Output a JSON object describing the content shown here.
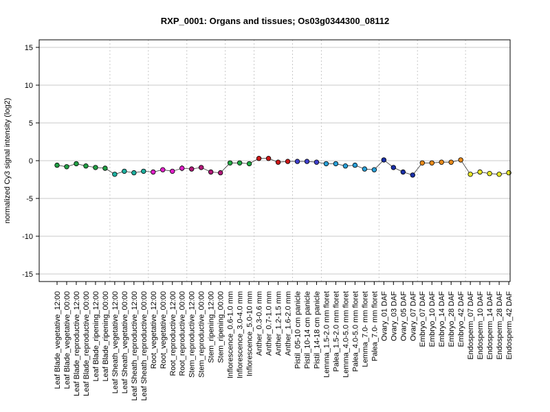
{
  "chart_data": {
    "type": "line",
    "title": "RXP_0001: Organs and tissues; Os03g0344300_08112",
    "ylabel": "normalized Cy3 signal intensity (log2)",
    "xlabel": "",
    "ylim": [
      -16,
      16
    ],
    "y_ticks": [
      -15,
      -10,
      -5,
      0,
      5,
      10,
      15
    ],
    "grid": {
      "horizontal": true,
      "vertical_group_separators": true
    },
    "categories": [
      "Leaf Blade_vegetative_12:00",
      "Leaf Blade_vegetative_00:00",
      "Leaf Blade_reproductive_12:00",
      "Leaf Blade_reproductive_00:00",
      "Leaf Blade_ripening_12:00",
      "Leaf Blade_ripening_00:00",
      "Leaf Sheath_vegetative_12:00",
      "Leaf Sheath_vegetative_00:00",
      "Leaf Sheath_reproductive_12:00",
      "Leaf Sheath_reproductive_00:00",
      "Root_vegetative_12:00",
      "Root_vegetative_00:00",
      "Root_reproductive_12:00",
      "Root_reproductive_00:00",
      "Stem_reproductive_12:00",
      "Stem_reproductive_00:00",
      "Stem_ripening_12:00",
      "Stem_ripening_00:00",
      "Inflorescence_0.6-1.0 mm",
      "Inflorescence_3.0-4.0 mm",
      "Inflorescence_5.0-10 mm",
      "Anther_0.3-0.6 mm",
      "Anther_0.7-1.0 mm",
      "Anther_1.2-1.5 mm",
      "Anther_1.6-2.0 mm",
      "Pistil_05-10 cm panicle",
      "Pistil_10-14 cm panicle",
      "Pistil_14-18 cm panicle",
      "Lemma_1.5-2.0 mm floret",
      "Palea_1.5-2.0 mm floret",
      "Lemma_4.0-5.0 mm floret",
      "Palea_4.0-5.0 mm floret",
      "Lemma_7.0- mm floret",
      "Palea_7.0- mm floret",
      "Ovary_01 DAF",
      "Ovary_03 DAF",
      "Ovary_05 DAF",
      "Ovary_07 DAF",
      "Embryo_07 DAF",
      "Embryo_10 DAF",
      "Embryo_14 DAF",
      "Embryo_28 DAF",
      "Embryo_42 DAF",
      "Endosperm_07 DAF",
      "Endosperm_10 DAF",
      "Endosperm_14 DAF",
      "Endosperm_28 DAF",
      "Endosperm_42 DAF"
    ],
    "values": [
      -0.6,
      -0.8,
      -0.4,
      -0.7,
      -0.9,
      -1.0,
      -1.8,
      -1.4,
      -1.6,
      -1.4,
      -1.5,
      -1.2,
      -1.4,
      -1.0,
      -1.1,
      -0.9,
      -1.5,
      -1.6,
      -0.3,
      -0.3,
      -0.4,
      0.3,
      0.3,
      -0.2,
      -0.1,
      -0.1,
      -0.1,
      -0.2,
      -0.4,
      -0.4,
      -0.7,
      -0.6,
      -1.1,
      -1.2,
      0.1,
      -0.9,
      -1.5,
      -1.9,
      -0.3,
      -0.3,
      -0.2,
      -0.2,
      0.1,
      -1.8,
      -1.5,
      -1.7,
      -1.8,
      -1.6
    ],
    "error": [
      0.1,
      0.1,
      0.1,
      0.1,
      0.1,
      0.1,
      0.15,
      0.1,
      0.2,
      0.1,
      0.1,
      0.1,
      0.25,
      0.4,
      0.3,
      0.2,
      0.1,
      0.1,
      0.1,
      0.1,
      0.1,
      0.1,
      0.1,
      0.1,
      0.1,
      0.1,
      0.1,
      0.1,
      0.1,
      0.1,
      0.1,
      0.1,
      0.1,
      0.1,
      0.1,
      0.1,
      0.1,
      0.1,
      0.1,
      0.1,
      0.1,
      0.1,
      0.1,
      0.1,
      0.1,
      0.1,
      0.1,
      0.1
    ],
    "colors": [
      "#22a045",
      "#22a045",
      "#22a045",
      "#22a045",
      "#22a045",
      "#22a045",
      "#1fb0a0",
      "#1fb0a0",
      "#1fb0a0",
      "#1fb0a0",
      "#e020c8",
      "#e020c8",
      "#e020c8",
      "#e020c8",
      "#b01878",
      "#b01878",
      "#b01878",
      "#b01878",
      "#22aa44",
      "#22aa44",
      "#22aa44",
      "#cc1818",
      "#cc1818",
      "#cc1818",
      "#cc1818",
      "#4040cc",
      "#4040cc",
      "#4040cc",
      "#2aa0d8",
      "#2aa0d8",
      "#2aa0d8",
      "#2aa0d8",
      "#2aa0d8",
      "#2aa0d8",
      "#1a30a8",
      "#1a30a8",
      "#1a30a8",
      "#1a30a8",
      "#e88a1a",
      "#e88a1a",
      "#e88a1a",
      "#e88a1a",
      "#e88a1a",
      "#e8e828",
      "#e8e828",
      "#e8e828",
      "#e8e828",
      "#e8e828"
    ],
    "group_separators_after": [
      5,
      9,
      13,
      17,
      20,
      24,
      27,
      33,
      37,
      42
    ]
  }
}
